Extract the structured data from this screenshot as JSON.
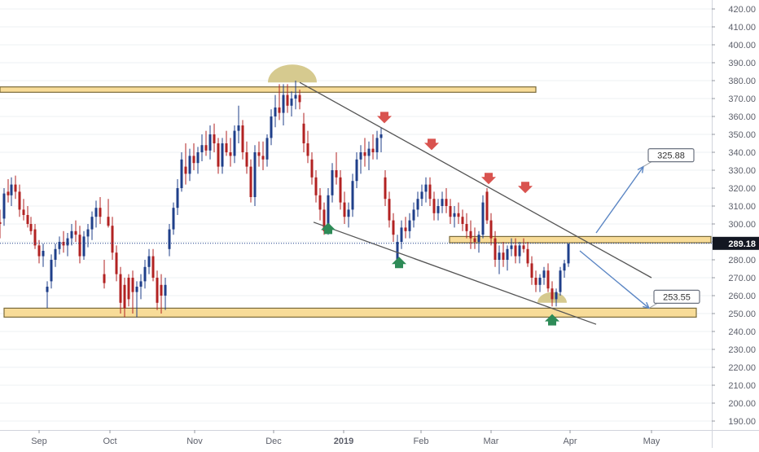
{
  "chart_data": {
    "type": "candlestick",
    "instrument_price": "289.18",
    "y_axis": {
      "ylim": [
        185,
        425
      ],
      "ticks": [
        "420.00",
        "410.00",
        "400.00",
        "390.00",
        "380.00",
        "370.00",
        "360.00",
        "350.00",
        "340.00",
        "330.00",
        "320.00",
        "310.00",
        "300.00",
        "290.00",
        "280.00",
        "270.00",
        "260.00",
        "250.00",
        "240.00",
        "230.00",
        "220.00",
        "210.00",
        "200.00",
        "190.00"
      ],
      "tick_values": [
        420,
        410,
        400,
        390,
        380,
        370,
        360,
        350,
        340,
        330,
        320,
        310,
        300,
        290,
        280,
        270,
        260,
        250,
        240,
        230,
        220,
        210,
        200,
        190
      ],
      "current_label": "289.18",
      "current_value": 289.18
    },
    "x_axis": {
      "labels": [
        "Sep",
        "Oct",
        "Nov",
        "Dec",
        "2019",
        "Feb",
        "Mar",
        "Apr",
        "May"
      ],
      "label_days": [
        48,
        135,
        239,
        336,
        422,
        517,
        603,
        700,
        800
      ]
    },
    "candles": [
      [
        0,
        301,
        308,
        292,
        300
      ],
      [
        5,
        303,
        320,
        299,
        317
      ],
      [
        10,
        318,
        325,
        312,
        316
      ],
      [
        14,
        316,
        326,
        310,
        322
      ],
      [
        19,
        322,
        327,
        314,
        318
      ],
      [
        24,
        318,
        322,
        304,
        308
      ],
      [
        29,
        308,
        314,
        302,
        305
      ],
      [
        34,
        305,
        310,
        298,
        300
      ],
      [
        38,
        300,
        304,
        294,
        296
      ],
      [
        43,
        297,
        300,
        286,
        288
      ],
      [
        48,
        288,
        291,
        278,
        282
      ],
      [
        53,
        282,
        289,
        276,
        285
      ],
      [
        58,
        262,
        268,
        253,
        265
      ],
      [
        63,
        268,
        283,
        264,
        280
      ],
      [
        68,
        280,
        289,
        276,
        286
      ],
      [
        73,
        286,
        293,
        283,
        290
      ],
      [
        78,
        290,
        296,
        284,
        288
      ],
      [
        83,
        288,
        295,
        282,
        292
      ],
      [
        88,
        292,
        300,
        288,
        296
      ],
      [
        93,
        296,
        302,
        290,
        294
      ],
      [
        98,
        294,
        299,
        278,
        282
      ],
      [
        103,
        282,
        296,
        280,
        293
      ],
      [
        108,
        293,
        300,
        287,
        297
      ],
      [
        113,
        297,
        307,
        291,
        304
      ],
      [
        118,
        304,
        313,
        298,
        309
      ],
      [
        123,
        309,
        315,
        300,
        304
      ],
      [
        128,
        272,
        280,
        264,
        267
      ],
      [
        133,
        304,
        314,
        298,
        299
      ],
      [
        138,
        299,
        304,
        280,
        284
      ],
      [
        143,
        284,
        288,
        268,
        272
      ],
      [
        148,
        272,
        276,
        250,
        256
      ],
      [
        153,
        266,
        270,
        248,
        253
      ],
      [
        158,
        270,
        272,
        254,
        258
      ],
      [
        163,
        270,
        274,
        250,
        262
      ],
      [
        168,
        262,
        268,
        248,
        265
      ],
      [
        173,
        265,
        272,
        258,
        268
      ],
      [
        178,
        268,
        280,
        264,
        276
      ],
      [
        183,
        276,
        286,
        272,
        282
      ],
      [
        188,
        282,
        286,
        268,
        270
      ],
      [
        193,
        270,
        274,
        252,
        256
      ],
      [
        198,
        266,
        272,
        250,
        260
      ],
      [
        203,
        260,
        270,
        252,
        266
      ],
      [
        208,
        286,
        300,
        282,
        297
      ],
      [
        213,
        297,
        312,
        294,
        309
      ],
      [
        218,
        309,
        325,
        305,
        320
      ],
      [
        223,
        320,
        340,
        318,
        336
      ],
      [
        228,
        332,
        345,
        322,
        328
      ],
      [
        233,
        328,
        342,
        324,
        338
      ],
      [
        238,
        338,
        345,
        330,
        334
      ],
      [
        243,
        334,
        343,
        328,
        340
      ],
      [
        248,
        340,
        350,
        335,
        344
      ],
      [
        253,
        344,
        352,
        338,
        341
      ],
      [
        258,
        341,
        355,
        336,
        350
      ],
      [
        263,
        350,
        356,
        340,
        345
      ],
      [
        268,
        345,
        348,
        328,
        332
      ],
      [
        273,
        332,
        348,
        328,
        345
      ],
      [
        278,
        345,
        352,
        338,
        340
      ],
      [
        283,
        340,
        348,
        332,
        338
      ],
      [
        288,
        338,
        355,
        334,
        352
      ],
      [
        293,
        352,
        366,
        345,
        355
      ],
      [
        298,
        355,
        358,
        336,
        340
      ],
      [
        303,
        340,
        346,
        328,
        332
      ],
      [
        308,
        332,
        336,
        312,
        315
      ],
      [
        313,
        315,
        344,
        310,
        340
      ],
      [
        318,
        340,
        346,
        332,
        338
      ],
      [
        323,
        338,
        346,
        330,
        336
      ],
      [
        328,
        336,
        350,
        332,
        348
      ],
      [
        333,
        348,
        364,
        344,
        360
      ],
      [
        338,
        360,
        372,
        354,
        365
      ],
      [
        343,
        365,
        378,
        358,
        362
      ],
      [
        348,
        362,
        378,
        355,
        372
      ],
      [
        353,
        372,
        378,
        362,
        366
      ],
      [
        358,
        366,
        374,
        360,
        370
      ],
      [
        363,
        370,
        380,
        364,
        372
      ],
      [
        368,
        372,
        375,
        364,
        368
      ],
      [
        373,
        356,
        362,
        340,
        345
      ],
      [
        378,
        345,
        352,
        334,
        338
      ],
      [
        383,
        336,
        340,
        322,
        326
      ],
      [
        388,
        326,
        330,
        312,
        316
      ],
      [
        393,
        316,
        320,
        302,
        308
      ],
      [
        398,
        308,
        312,
        294,
        296
      ],
      [
        403,
        296,
        320,
        294,
        316
      ],
      [
        408,
        316,
        334,
        312,
        330
      ],
      [
        413,
        330,
        340,
        322,
        326
      ],
      [
        418,
        326,
        330,
        308,
        312
      ],
      [
        423,
        312,
        318,
        300,
        304
      ],
      [
        428,
        304,
        312,
        298,
        308
      ],
      [
        433,
        308,
        328,
        304,
        324
      ],
      [
        438,
        324,
        340,
        320,
        336
      ],
      [
        443,
        336,
        344,
        328,
        340
      ],
      [
        448,
        340,
        348,
        332,
        338
      ],
      [
        453,
        338,
        346,
        330,
        342
      ],
      [
        458,
        342,
        350,
        336,
        340
      ],
      [
        463,
        340,
        352,
        336,
        348
      ],
      [
        468,
        348,
        354,
        340,
        350
      ],
      [
        473,
        326,
        330,
        310,
        314
      ],
      [
        478,
        314,
        318,
        298,
        302
      ],
      [
        483,
        302,
        306,
        290,
        294
      ],
      [
        488,
        280,
        294,
        278,
        290
      ],
      [
        493,
        290,
        302,
        286,
        298
      ],
      [
        498,
        298,
        304,
        292,
        296
      ],
      [
        503,
        296,
        306,
        292,
        302
      ],
      [
        508,
        302,
        312,
        298,
        308
      ],
      [
        513,
        308,
        318,
        304,
        314
      ],
      [
        518,
        314,
        322,
        310,
        318
      ],
      [
        523,
        318,
        326,
        312,
        322
      ],
      [
        528,
        322,
        326,
        310,
        314
      ],
      [
        533,
        314,
        318,
        302,
        306
      ],
      [
        538,
        306,
        314,
        302,
        310
      ],
      [
        543,
        310,
        318,
        306,
        314
      ],
      [
        548,
        314,
        320,
        306,
        310
      ],
      [
        553,
        310,
        314,
        300,
        304
      ],
      [
        558,
        304,
        310,
        298,
        306
      ],
      [
        563,
        306,
        312,
        300,
        304
      ],
      [
        568,
        304,
        308,
        296,
        300
      ],
      [
        573,
        300,
        306,
        292,
        296
      ],
      [
        578,
        296,
        302,
        286,
        292
      ],
      [
        583,
        292,
        298,
        286,
        290
      ],
      [
        588,
        290,
        296,
        284,
        294
      ],
      [
        593,
        294,
        316,
        292,
        312
      ],
      [
        598,
        318,
        320,
        300,
        302
      ],
      [
        603,
        302,
        306,
        288,
        292
      ],
      [
        608,
        292,
        296,
        276,
        280
      ],
      [
        613,
        280,
        288,
        272,
        284
      ],
      [
        618,
        284,
        290,
        276,
        280
      ],
      [
        623,
        280,
        288,
        274,
        286
      ],
      [
        628,
        286,
        292,
        282,
        288
      ],
      [
        633,
        288,
        292,
        278,
        282
      ],
      [
        638,
        282,
        290,
        278,
        288
      ],
      [
        643,
        288,
        292,
        284,
        286
      ],
      [
        648,
        286,
        290,
        276,
        278
      ],
      [
        653,
        278,
        282,
        266,
        270
      ],
      [
        658,
        270,
        274,
        262,
        266
      ],
      [
        663,
        266,
        272,
        262,
        270
      ],
      [
        668,
        270,
        276,
        266,
        274
      ],
      [
        673,
        274,
        278,
        262,
        264
      ],
      [
        678,
        264,
        268,
        254,
        258
      ],
      [
        683,
        258,
        264,
        254,
        262
      ],
      [
        688,
        262,
        276,
        260,
        274
      ],
      [
        693,
        274,
        280,
        270,
        278
      ],
      [
        698,
        278,
        289,
        276,
        289
      ]
    ],
    "horizontal_zones": [
      {
        "from_day": 0,
        "to_day": 658,
        "low": 373.5,
        "high": 376.5
      },
      {
        "from_day": 552,
        "to_day": 873,
        "low": 289.5,
        "high": 293
      },
      {
        "from_day": 5,
        "to_day": 855,
        "low": 248,
        "high": 253
      }
    ],
    "trendlines": [
      {
        "from": [
          368,
          379
        ],
        "to": [
          800,
          270
        ]
      },
      {
        "from": [
          385,
          301
        ],
        "to": [
          732,
          244
        ]
      }
    ],
    "projections": [
      {
        "from": [
          732,
          295
        ],
        "to": [
          790,
          332
        ],
        "label": "325.88"
      },
      {
        "from": [
          712,
          285
        ],
        "to": [
          797,
          253
        ],
        "label": "253.55"
      }
    ],
    "arrows_down": [
      [
        472,
        358
      ],
      [
        530,
        343
      ],
      [
        600,
        324
      ],
      [
        645,
        319
      ]
    ],
    "arrows_up": [
      [
        403,
        298
      ],
      [
        490,
        279
      ],
      [
        678,
        247
      ]
    ],
    "arcs": [
      {
        "center_day": 359,
        "center_value": 379,
        "rx": 30,
        "ry": 22
      },
      {
        "center_day": 678,
        "center_value": 256,
        "rx": 18,
        "ry": 13
      }
    ],
    "colors": {
      "up": "#1f3f8a",
      "down": "#b22222",
      "zone_fill": "#f8dc98",
      "zone_stroke": "#7a6a3a",
      "trendline": "#555555",
      "projection": "#5b86c4",
      "arrow_down": "#d9534f",
      "arrow_up": "#2e8b57",
      "arc": "#c8b86a",
      "current_badge": "#131722",
      "axis_text": "#5d606b",
      "grid": "#eef0f3"
    }
  }
}
